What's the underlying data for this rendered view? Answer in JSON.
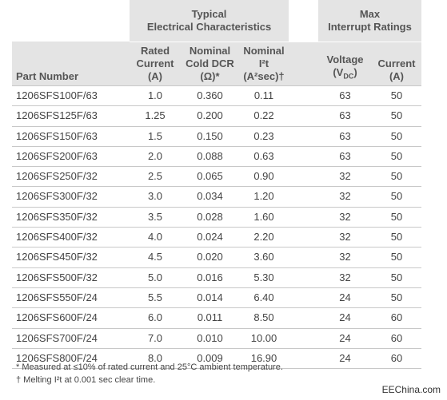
{
  "header": {
    "group_typical_line1": "Typical",
    "group_typical_line2": "Electrical Characteristics",
    "group_max_line1": "Max",
    "group_max_line2": "Interrupt Ratings",
    "col_part": "Part Number",
    "col_rated_line1": "Rated",
    "col_rated_line2": "Current",
    "col_rated_line3": "(A)",
    "col_dcr_line1": "Nominal",
    "col_dcr_line2": "Cold DCR",
    "col_dcr_line3": "(Ω)*",
    "col_i2t_line1": "Nominal",
    "col_i2t_line2": "I²t",
    "col_i2t_line3": "(A²sec)†",
    "col_volt_line1": "Voltage",
    "col_volt_line2": "(V",
    "col_volt_sub": "DC",
    "col_volt_line2_end": ")",
    "col_curr_line1": "Current",
    "col_curr_line2": "(A)"
  },
  "rows": [
    {
      "part": "1206SFS100F/63",
      "rated": "1.0",
      "dcr": "0.360",
      "i2t": "0.11",
      "voltage": "63",
      "current": "50"
    },
    {
      "part": "1206SFS125F/63",
      "rated": "1.25",
      "dcr": "0.200",
      "i2t": "0.22",
      "voltage": "63",
      "current": "50"
    },
    {
      "part": "1206SFS150F/63",
      "rated": "1.5",
      "dcr": "0.150",
      "i2t": "0.23",
      "voltage": "63",
      "current": "50"
    },
    {
      "part": "1206SFS200F/63",
      "rated": "2.0",
      "dcr": "0.088",
      "i2t": "0.63",
      "voltage": "63",
      "current": "50"
    },
    {
      "part": "1206SFS250F/32",
      "rated": "2.5",
      "dcr": "0.065",
      "i2t": "0.90",
      "voltage": "32",
      "current": "50"
    },
    {
      "part": "1206SFS300F/32",
      "rated": "3.0",
      "dcr": "0.034",
      "i2t": "1.20",
      "voltage": "32",
      "current": "50"
    },
    {
      "part": "1206SFS350F/32",
      "rated": "3.5",
      "dcr": "0.028",
      "i2t": "1.60",
      "voltage": "32",
      "current": "50"
    },
    {
      "part": "1206SFS400F/32",
      "rated": "4.0",
      "dcr": "0.024",
      "i2t": "2.20",
      "voltage": "32",
      "current": "50"
    },
    {
      "part": "1206SFS450F/32",
      "rated": "4.5",
      "dcr": "0.020",
      "i2t": "3.60",
      "voltage": "32",
      "current": "50"
    },
    {
      "part": "1206SFS500F/32",
      "rated": "5.0",
      "dcr": "0.016",
      "i2t": "5.30",
      "voltage": "32",
      "current": "50"
    },
    {
      "part": "1206SFS550F/24",
      "rated": "5.5",
      "dcr": "0.014",
      "i2t": "6.40",
      "voltage": "24",
      "current": "50"
    },
    {
      "part": "1206SFS600F/24",
      "rated": "6.0",
      "dcr": "0.011",
      "i2t": "8.50",
      "voltage": "24",
      "current": "60"
    },
    {
      "part": "1206SFS700F/24",
      "rated": "7.0",
      "dcr": "0.010",
      "i2t": "10.00",
      "voltage": "24",
      "current": "60"
    },
    {
      "part": "1206SFS800F/24",
      "rated": "8.0",
      "dcr": "0.009",
      "i2t": "16.90",
      "voltage": "24",
      "current": "60"
    }
  ],
  "notes": {
    "note1": "* Measured at ≤10% of rated current and 25°C ambient temperature.",
    "note2": "† Melting I²t at 0.001 sec clear time."
  },
  "watermark": "EEChina.com"
}
